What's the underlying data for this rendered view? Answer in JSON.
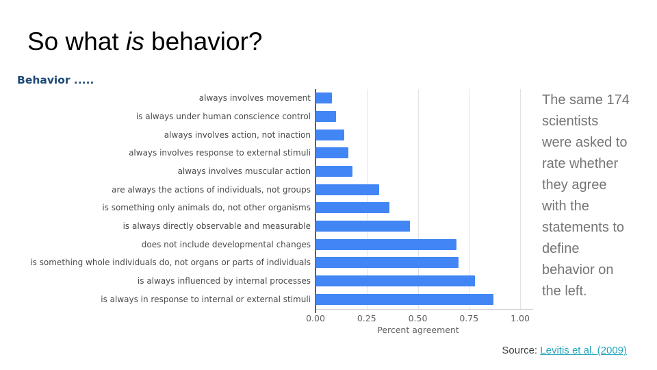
{
  "slide": {
    "title_prefix": "So what ",
    "title_italic": "is",
    "title_suffix": " behavior?"
  },
  "chart_data": {
    "type": "bar",
    "orientation": "horizontal",
    "heading": "Behavior .....",
    "categories": [
      "always involves movement",
      "is always under human conscience control",
      "always involves action, not inaction",
      "always involves response to external stimuli",
      "always involves muscular action",
      "are always the actions of individuals, not groups",
      "is something only animals do, not other organisms",
      "is always directly observable and measurable",
      "does not include developmental changes",
      "is something whole individuals do, not organs or parts of individuals",
      "is always influenced by internal processes",
      "is always in response to internal or external stimuli"
    ],
    "values": [
      0.08,
      0.1,
      0.14,
      0.16,
      0.18,
      0.31,
      0.36,
      0.46,
      0.69,
      0.7,
      0.78,
      0.87
    ],
    "xlabel": "Percent agreement",
    "xlim": [
      0,
      1.0
    ],
    "xticks": [
      "0.00",
      "0.25",
      "0.50",
      "0.75",
      "1.00"
    ],
    "grid": true,
    "legend": "none"
  },
  "side_note": {
    "full_text": "The same 174 scientists were asked to rate whether they agree with the statements to define behavior on the left.",
    "lines": [
      "The same 174",
      "scientists",
      "were asked to",
      "rate whether",
      "they agree",
      "with the",
      "statements to",
      "define",
      "behavior on",
      "the left."
    ]
  },
  "source": {
    "prefix": "Source: ",
    "link_text": "Levitis et al. (2009)"
  },
  "colors": {
    "bar_blue": "#4285f4",
    "heading_navy": "#1d4b77",
    "link_teal": "#27a6bc",
    "note_gray": "#757575",
    "axis_dark": "#5f5f5f",
    "axis_light": "#cfcfcf",
    "gridline": "#e2e2e2",
    "category_label": "#4a4a4a",
    "tick_label": "#616161",
    "title_black": "#000000",
    "source_text": "#3c4043"
  }
}
